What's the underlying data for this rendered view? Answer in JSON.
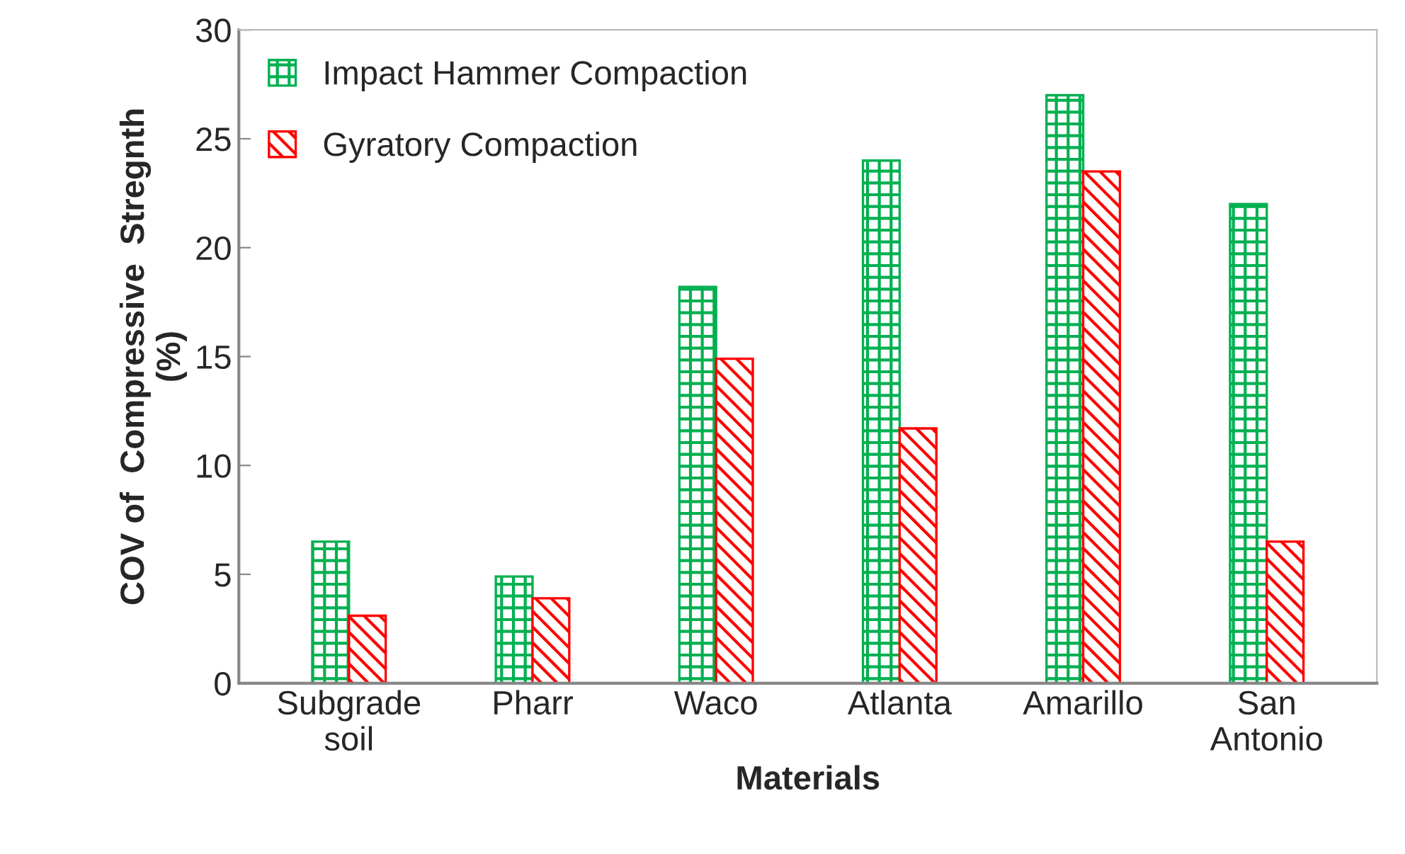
{
  "chart_data": {
    "type": "bar",
    "xlabel": "Materials",
    "ylabel": "COV of  Compressive  Stregnth\n(%)",
    "categories": [
      "Subgrade\nsoil",
      "Pharr",
      "Waco",
      "Atlanta",
      "Amarillo",
      "San\nAntonio"
    ],
    "series": [
      {
        "name": "Impact Hammer Compaction",
        "color": "#00b050",
        "values": [
          6.5,
          4.9,
          18.2,
          24.0,
          27.0,
          22.0
        ]
      },
      {
        "name": "Gyratory Compaction",
        "color": "#ff0000",
        "values": [
          3.1,
          3.9,
          14.9,
          11.7,
          23.5,
          6.5
        ]
      }
    ],
    "ylim": [
      0,
      30
    ],
    "yticks": [
      0,
      5,
      10,
      15,
      20,
      25,
      30
    ],
    "grid": false,
    "legend": "top left"
  }
}
